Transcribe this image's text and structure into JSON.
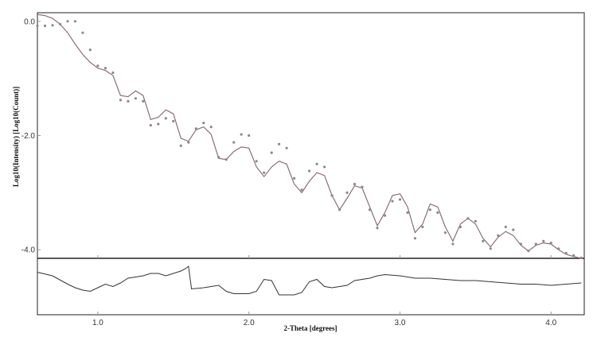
{
  "chart_data": {
    "type": "line",
    "xlabel": "2-Theta [degrees]",
    "ylabel": "Log10(Intensity) [Log10(Count)]",
    "xlim": [
      0.6,
      4.22
    ],
    "ylim": [
      -4.15,
      0.15
    ],
    "x_ticks": [
      "1.0",
      "2.0",
      "3.0",
      "4.0"
    ],
    "y_ticks": [
      "0.0",
      "-2.0",
      "-4.0"
    ],
    "x_tick_values": [
      1.0,
      2.0,
      3.0,
      4.0
    ],
    "y_tick_values": [
      0.0,
      -2.0,
      -4.0
    ],
    "grid": false,
    "colors": {
      "fit_line": "#8a6f78",
      "measured_points": "#8a8a8a",
      "residual_line": "#333333",
      "frame": "#222222",
      "ticks": "#999999"
    },
    "series": [
      {
        "style": "line",
        "x": [
          0.6,
          0.65,
          0.7,
          0.75,
          0.8,
          0.85,
          0.9,
          0.95,
          1.0,
          1.05,
          1.1,
          1.15,
          1.2,
          1.25,
          1.3,
          1.35,
          1.4,
          1.45,
          1.5,
          1.55,
          1.6,
          1.65,
          1.7,
          1.75,
          1.8,
          1.85,
          1.9,
          1.95,
          2.0,
          2.05,
          2.1,
          2.15,
          2.2,
          2.25,
          2.3,
          2.35,
          2.4,
          2.45,
          2.5,
          2.55,
          2.6,
          2.65,
          2.7,
          2.75,
          2.8,
          2.85,
          2.9,
          2.95,
          3.0,
          3.05,
          3.1,
          3.15,
          3.2,
          3.25,
          3.3,
          3.35,
          3.4,
          3.45,
          3.5,
          3.55,
          3.6,
          3.65,
          3.7,
          3.75,
          3.8,
          3.85,
          3.9,
          3.95,
          4.0,
          4.05,
          4.1,
          4.15,
          4.2
        ],
        "y": [
          0.12,
          0.1,
          0.05,
          -0.05,
          -0.2,
          -0.4,
          -0.58,
          -0.72,
          -0.82,
          -0.86,
          -0.95,
          -1.3,
          -1.32,
          -1.22,
          -1.3,
          -1.72,
          -1.68,
          -1.55,
          -1.62,
          -2.05,
          -2.1,
          -1.9,
          -1.85,
          -1.98,
          -2.4,
          -2.42,
          -2.28,
          -2.2,
          -2.22,
          -2.55,
          -2.72,
          -2.55,
          -2.45,
          -2.5,
          -2.85,
          -3.0,
          -2.8,
          -2.65,
          -2.7,
          -3.05,
          -3.3,
          -3.1,
          -2.88,
          -2.92,
          -3.25,
          -3.58,
          -3.35,
          -3.05,
          -3.02,
          -3.25,
          -3.7,
          -3.55,
          -3.2,
          -3.25,
          -3.6,
          -3.85,
          -3.55,
          -3.45,
          -3.55,
          -3.8,
          -3.95,
          -3.78,
          -3.68,
          -3.75,
          -3.92,
          -4.02,
          -3.92,
          -3.88,
          -3.9,
          -4.0,
          -4.08,
          -4.12,
          -4.15
        ]
      },
      {
        "style": "points",
        "x": [
          0.6,
          0.65,
          0.7,
          0.75,
          0.8,
          0.85,
          0.9,
          0.95,
          1.0,
          1.05,
          1.1,
          1.15,
          1.2,
          1.25,
          1.3,
          1.35,
          1.4,
          1.45,
          1.5,
          1.55,
          1.6,
          1.65,
          1.7,
          1.75,
          1.8,
          1.85,
          1.9,
          1.95,
          2.0,
          2.05,
          2.1,
          2.15,
          2.2,
          2.25,
          2.3,
          2.35,
          2.4,
          2.45,
          2.5,
          2.55,
          2.6,
          2.65,
          2.7,
          2.75,
          2.8,
          2.85,
          2.9,
          2.95,
          3.0,
          3.05,
          3.1,
          3.15,
          3.2,
          3.25,
          3.3,
          3.35,
          3.4,
          3.45,
          3.5,
          3.55,
          3.6,
          3.65,
          3.7,
          3.75,
          3.8,
          3.85,
          3.9,
          3.95,
          4.0,
          4.05,
          4.1,
          4.15,
          4.2
        ],
        "y": [
          -0.08,
          -0.08,
          -0.07,
          -0.05,
          0.0,
          0.0,
          -0.2,
          -0.5,
          -0.78,
          -0.82,
          -0.9,
          -1.38,
          -1.4,
          -1.35,
          -1.4,
          -1.82,
          -1.8,
          -1.7,
          -1.75,
          -2.18,
          -2.12,
          -1.88,
          -1.78,
          -1.85,
          -2.38,
          -2.42,
          -2.12,
          -1.98,
          -2.0,
          -2.45,
          -2.65,
          -2.3,
          -2.15,
          -2.22,
          -2.75,
          -2.95,
          -2.62,
          -2.5,
          -2.55,
          -3.05,
          -3.3,
          -3.0,
          -2.85,
          -2.9,
          -3.3,
          -3.62,
          -3.4,
          -3.15,
          -3.12,
          -3.35,
          -3.8,
          -3.6,
          -3.3,
          -3.35,
          -3.7,
          -3.9,
          -3.6,
          -3.45,
          -3.5,
          -3.85,
          -3.98,
          -3.75,
          -3.6,
          -3.65,
          -3.9,
          -4.02,
          -3.9,
          -3.85,
          -3.88,
          -3.98,
          -4.06,
          -4.1,
          -4.14
        ]
      },
      {
        "style": "residual",
        "x": [
          0.6,
          0.7,
          0.8,
          0.85,
          0.9,
          0.95,
          1.0,
          1.05,
          1.1,
          1.15,
          1.2,
          1.25,
          1.3,
          1.35,
          1.4,
          1.45,
          1.5,
          1.55,
          1.58,
          1.6,
          1.62,
          1.7,
          1.8,
          1.85,
          1.9,
          2.0,
          2.05,
          2.1,
          2.15,
          2.2,
          2.3,
          2.35,
          2.4,
          2.45,
          2.5,
          2.55,
          2.6,
          2.65,
          2.7,
          2.8,
          2.85,
          2.9,
          3.0,
          3.1,
          3.2,
          3.3,
          3.4,
          3.5,
          3.6,
          3.7,
          3.8,
          3.9,
          4.0,
          4.1,
          4.2
        ],
        "y": [
          0.6,
          0.45,
          0.1,
          -0.05,
          -0.15,
          -0.2,
          -0.05,
          0.1,
          0.0,
          0.15,
          0.35,
          0.4,
          0.45,
          0.55,
          0.55,
          0.45,
          0.55,
          0.65,
          0.75,
          0.85,
          -0.1,
          -0.05,
          0.05,
          -0.2,
          -0.3,
          -0.3,
          -0.2,
          0.3,
          0.25,
          -0.35,
          -0.35,
          -0.25,
          0.2,
          0.3,
          0.0,
          -0.05,
          0.0,
          0.05,
          0.25,
          0.35,
          0.45,
          0.5,
          0.45,
          0.35,
          0.35,
          0.3,
          0.25,
          0.25,
          0.2,
          0.15,
          0.1,
          0.1,
          0.05,
          0.1,
          0.15
        ]
      }
    ]
  }
}
